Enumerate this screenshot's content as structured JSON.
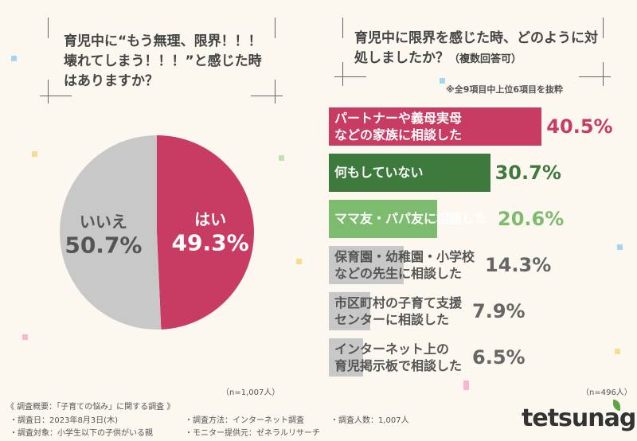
{
  "left": {
    "question": "育児中に“もう無理、限界！！！壊れてしまう！！！”と感じた時はありますか？",
    "n": "（n=1,007人）"
  },
  "right": {
    "question": "育児中に限界を感じた時、どのように対処しましたか？",
    "question_note": "（複数回答可）",
    "subnote": "※全9項目中上位6項目を抜粋",
    "n": "（n=496人）"
  },
  "chart_data": [
    {
      "type": "pie",
      "slices": [
        {
          "label": "はい",
          "value": 49.3,
          "display": "49.3%",
          "color": "#c83b62"
        },
        {
          "label": "いいえ",
          "value": 50.7,
          "display": "50.7%",
          "color": "#c8c8c8"
        }
      ]
    },
    {
      "type": "bar",
      "orientation": "horizontal",
      "categories": [
        "パートナーや義母実母などの家族に相談した",
        "何もしていない",
        "ママ友・パパ友に相談した",
        "保育園・幼稚園・小学校などの先生に相談した",
        "市区町村の子育て支援センターに相談した",
        "インターネット上の育児掲示板で相談した"
      ],
      "lines": [
        [
          "パートナーや義母実母",
          "などの家族に相談した"
        ],
        [
          "何もしていない"
        ],
        [
          "ママ友・パパ友に相談した"
        ],
        [
          "保育園・幼稚園・小学校",
          "などの先生に相談した"
        ],
        [
          "市区町村の子育て支援",
          "センターに相談した"
        ],
        [
          "インターネット上の",
          "育児掲示板で相談した"
        ]
      ],
      "values": [
        40.5,
        30.7,
        20.6,
        14.3,
        7.9,
        6.5
      ],
      "display": [
        "40.5%",
        "30.7%",
        "20.6%",
        "14.3%",
        "7.9%",
        "6.5%"
      ],
      "colors": [
        "#c83b62",
        "#3e7a3d",
        "#7dbb6e",
        "#c8c8c8",
        "#c8c8c8",
        "#c8c8c8"
      ],
      "value_colors": [
        "#c83b62",
        "#3e7a3d",
        "#7dbb6e",
        "#666666",
        "#666666",
        "#666666"
      ]
    }
  ],
  "footer": {
    "title": "《 調査概要：「子育ての悩み」に関する調査 》",
    "items": [
      "・調査日：2023年8月3日(木)",
      "・調査方法：インターネット調査",
      "・調査人数：1,007人",
      "・調査対象：小学生以下の子供がいる親",
      "・モニター提供元：ゼネラルリサーチ"
    ],
    "logo": "tetsunagi"
  }
}
